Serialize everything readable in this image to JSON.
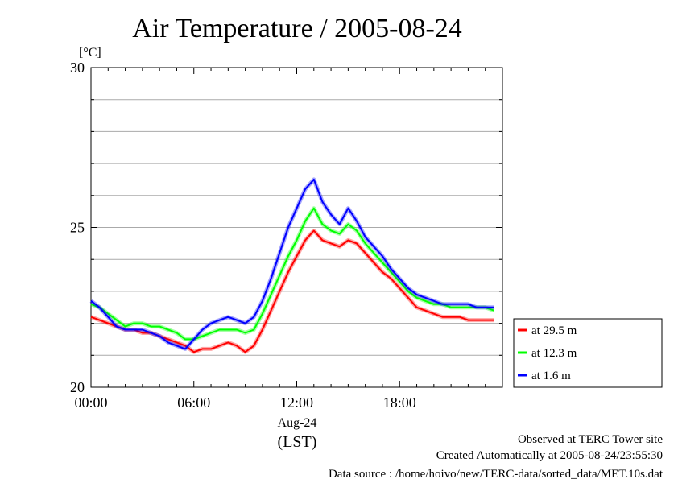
{
  "chart_data": {
    "type": "line",
    "title": "Air Temperature / 2005-08-24",
    "ylabel_unit": "[°C]",
    "ylim": [
      20,
      30
    ],
    "xlim_hours": [
      0,
      24
    ],
    "y_ticks": [
      "20",
      "25",
      "30"
    ],
    "y_tick_values": [
      20,
      25,
      30
    ],
    "x_ticks": [
      "00:00",
      "06:00",
      "12:00",
      "18:00"
    ],
    "x_tick_hours": [
      0,
      6,
      12,
      18
    ],
    "date_label": "Aug-24",
    "x_axis_label": "(LST)",
    "grid": true,
    "legend_placement": "right",
    "x_hours": [
      0,
      0.5,
      1,
      1.5,
      2,
      2.5,
      3,
      3.5,
      4,
      4.5,
      5,
      5.5,
      6,
      6.5,
      7,
      7.5,
      8,
      8.5,
      9,
      9.5,
      10,
      10.5,
      11,
      11.5,
      12,
      12.5,
      13,
      13.5,
      14,
      14.5,
      15,
      15.5,
      16,
      16.5,
      17,
      17.5,
      18,
      18.5,
      19,
      19.5,
      20,
      20.5,
      21,
      21.5,
      22,
      22.5,
      23,
      23.5
    ],
    "series": [
      {
        "name": "at 29.5 m",
        "color": "#ff0000",
        "values": [
          22.2,
          22.1,
          22.0,
          21.9,
          21.8,
          21.8,
          21.7,
          21.7,
          21.6,
          21.5,
          21.4,
          21.3,
          21.1,
          21.2,
          21.2,
          21.3,
          21.4,
          21.3,
          21.1,
          21.3,
          21.8,
          22.4,
          23.0,
          23.6,
          24.1,
          24.6,
          24.9,
          24.6,
          24.5,
          24.4,
          24.6,
          24.5,
          24.2,
          23.9,
          23.6,
          23.4,
          23.1,
          22.8,
          22.5,
          22.4,
          22.3,
          22.2,
          22.2,
          22.2,
          22.1,
          22.1,
          22.1,
          22.1
        ]
      },
      {
        "name": "at 12.3 m",
        "color": "#00ff00",
        "values": [
          22.6,
          22.5,
          22.3,
          22.1,
          21.9,
          22.0,
          22.0,
          21.9,
          21.9,
          21.8,
          21.7,
          21.5,
          21.5,
          21.6,
          21.7,
          21.8,
          21.8,
          21.8,
          21.7,
          21.8,
          22.3,
          22.9,
          23.5,
          24.1,
          24.6,
          25.2,
          25.6,
          25.1,
          24.9,
          24.8,
          25.1,
          24.9,
          24.5,
          24.2,
          23.9,
          23.6,
          23.3,
          23.0,
          22.8,
          22.7,
          22.6,
          22.6,
          22.5,
          22.5,
          22.5,
          22.5,
          22.5,
          22.4
        ]
      },
      {
        "name": "at 1.6 m",
        "color": "#0000ff",
        "values": [
          22.7,
          22.5,
          22.2,
          21.9,
          21.8,
          21.8,
          21.8,
          21.7,
          21.6,
          21.4,
          21.3,
          21.2,
          21.5,
          21.8,
          22.0,
          22.1,
          22.2,
          22.1,
          22.0,
          22.2,
          22.7,
          23.4,
          24.2,
          25.0,
          25.6,
          26.2,
          26.5,
          25.8,
          25.4,
          25.1,
          25.6,
          25.2,
          24.7,
          24.4,
          24.1,
          23.7,
          23.4,
          23.1,
          22.9,
          22.8,
          22.7,
          22.6,
          22.6,
          22.6,
          22.6,
          22.5,
          22.5,
          22.5
        ]
      }
    ]
  },
  "footer": {
    "site": "Observed at TERC Tower site",
    "created": "Created Automatically at 2005-08-24/23:55:30",
    "source": "Data source : /home/hoivo/new/TERC-data/sorted_data/MET.10s.dat"
  }
}
